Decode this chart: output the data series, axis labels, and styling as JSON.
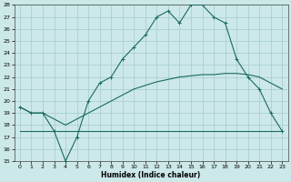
{
  "xlabel": "Humidex (Indice chaleur)",
  "x_ticks": [
    0,
    1,
    2,
    3,
    4,
    5,
    6,
    7,
    8,
    9,
    10,
    11,
    12,
    13,
    14,
    15,
    16,
    17,
    18,
    19,
    20,
    21,
    22,
    23
  ],
  "xlim": [
    -0.5,
    23.5
  ],
  "ylim": [
    15,
    28
  ],
  "y_ticks": [
    15,
    16,
    17,
    18,
    19,
    20,
    21,
    22,
    23,
    24,
    25,
    26,
    27,
    28
  ],
  "bg_color": "#cce8e8",
  "grid_color": "#aacfcf",
  "line_color": "#1a6b5e",
  "line1_x": [
    0,
    1,
    2,
    3,
    4,
    5,
    6,
    7,
    8,
    9,
    10,
    11,
    12,
    13,
    14,
    15,
    16,
    17,
    18,
    19,
    20,
    21,
    22,
    23
  ],
  "line1_y": [
    19.5,
    19.0,
    19.0,
    17.5,
    15.0,
    17.0,
    20.0,
    21.5,
    22.0,
    23.5,
    24.5,
    25.5,
    27.0,
    27.5,
    26.5,
    28.0,
    28.0,
    27.0,
    26.5,
    23.5,
    22.0,
    21.0,
    19.0,
    17.5
  ],
  "line2_x": [
    0,
    23
  ],
  "line2_y": [
    17.5,
    17.5
  ],
  "line3_x": [
    0,
    1,
    2,
    3,
    4,
    5,
    6,
    7,
    8,
    9,
    10,
    11,
    12,
    13,
    14,
    15,
    16,
    17,
    18,
    19,
    20,
    21,
    22,
    23
  ],
  "line3_y": [
    19.5,
    19.0,
    19.0,
    18.5,
    18.0,
    18.5,
    19.0,
    19.5,
    20.0,
    20.5,
    21.0,
    21.3,
    21.6,
    21.8,
    22.0,
    22.1,
    22.2,
    22.2,
    22.3,
    22.3,
    22.2,
    22.0,
    21.5,
    21.0
  ]
}
